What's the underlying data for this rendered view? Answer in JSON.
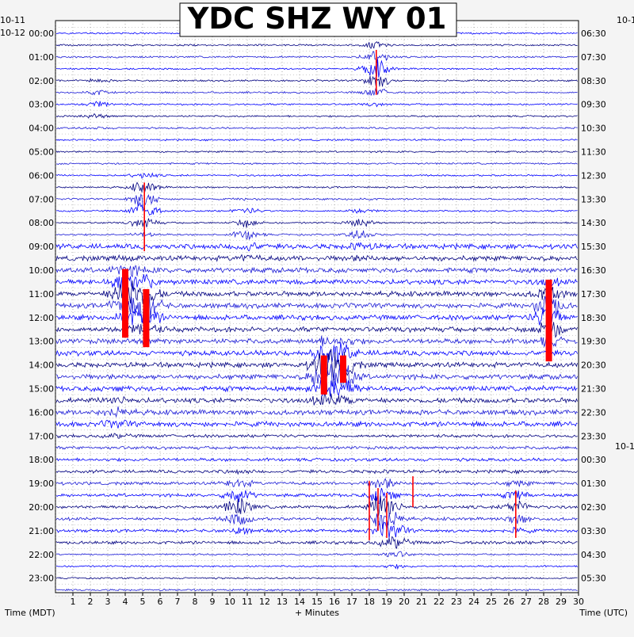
{
  "chart_data": {
    "type": "line",
    "title": "YDC SHZ WY 01",
    "xlabel": "+ Minutes",
    "left_axis_label": "Time (MDT)",
    "right_axis_label": "Time (UTC)",
    "xlim": [
      0,
      30
    ],
    "x_ticks": [
      1,
      2,
      3,
      4,
      5,
      6,
      7,
      8,
      9,
      10,
      11,
      12,
      13,
      14,
      15,
      16,
      17,
      18,
      19,
      20,
      21,
      22,
      23,
      24,
      25,
      26,
      27,
      28,
      29,
      30
    ],
    "left_date_prev": "10-11",
    "left_date_first": "10-12",
    "right_date_prev": "10-1",
    "right_date_next": "10-1",
    "left_hour_labels": [
      "00:00",
      "01:00",
      "02:00",
      "03:00",
      "04:00",
      "05:00",
      "06:00",
      "07:00",
      "08:00",
      "09:00",
      "10:00",
      "11:00",
      "12:00",
      "13:00",
      "14:00",
      "15:00",
      "16:00",
      "17:00",
      "18:00",
      "19:00",
      "20:00",
      "21:00",
      "22:00",
      "23:00"
    ],
    "right_hour_labels": [
      "06:30",
      "07:30",
      "08:30",
      "09:30",
      "10:30",
      "11:30",
      "12:30",
      "13:30",
      "14:30",
      "15:30",
      "16:30",
      "17:30",
      "18:30",
      "19:30",
      "20:30",
      "21:30",
      "22:30",
      "23:30",
      "00:30",
      "01:30",
      "02:30",
      "03:30",
      "04:30",
      "05:30"
    ],
    "trace_colors": [
      "#0000ff",
      "#000080",
      "#1c1cd6"
    ],
    "clip_color": "#ff0000",
    "grid": true,
    "events": [
      {
        "row": 1.6,
        "minute": 18.4,
        "amp": 1.6
      },
      {
        "row": 2.9,
        "minute": 2.4,
        "amp": 0.5
      },
      {
        "row": 7.2,
        "minute": 5.1,
        "amp": 1.8
      },
      {
        "row": 8.4,
        "minute": 11.0,
        "amp": 0.9
      },
      {
        "row": 8.4,
        "minute": 17.5,
        "amp": 0.8
      },
      {
        "row": 11.0,
        "minute": 4.0,
        "amp": 2.5
      },
      {
        "row": 11.5,
        "minute": 5.2,
        "amp": 2.5
      },
      {
        "row": 11.8,
        "minute": 28.3,
        "amp": 2.6
      },
      {
        "row": 14.3,
        "minute": 15.4,
        "amp": 2.8
      },
      {
        "row": 14.3,
        "minute": 16.5,
        "amp": 2.4
      },
      {
        "row": 16.0,
        "minute": 3.5,
        "amp": 0.7
      },
      {
        "row": 19.9,
        "minute": 10.5,
        "amp": 1.6
      },
      {
        "row": 20.0,
        "minute": 18.8,
        "amp": 2.4
      },
      {
        "row": 20.0,
        "minute": 26.5,
        "amp": 1.0
      },
      {
        "row": 21.3,
        "minute": 19.5,
        "amp": 1.0
      }
    ],
    "clipped": [
      {
        "minute": 4.0,
        "from_hour": 9.95,
        "to_hour": 12.85
      },
      {
        "minute": 5.2,
        "from_hour": 10.8,
        "to_hour": 13.25
      },
      {
        "minute": 15.4,
        "from_hour": 13.6,
        "to_hour": 15.25
      },
      {
        "minute": 16.5,
        "from_hour": 13.6,
        "to_hour": 14.75
      },
      {
        "minute": 28.3,
        "from_hour": 10.4,
        "to_hour": 13.85
      }
    ],
    "spikes": [
      {
        "minute": 18.4,
        "from_hour": 0.7,
        "to_hour": 2.6
      },
      {
        "minute": 5.1,
        "from_hour": 6.3,
        "to_hour": 9.2
      },
      {
        "minute": 18.0,
        "from_hour": 18.9,
        "to_hour": 21.4
      },
      {
        "minute": 18.5,
        "from_hour": 19.2,
        "to_hour": 21.0
      },
      {
        "minute": 19.0,
        "from_hour": 19.4,
        "to_hour": 21.3
      },
      {
        "minute": 20.5,
        "from_hour": 18.7,
        "to_hour": 20.0
      },
      {
        "minute": 26.4,
        "from_hour": 19.3,
        "to_hour": 21.3
      }
    ]
  }
}
